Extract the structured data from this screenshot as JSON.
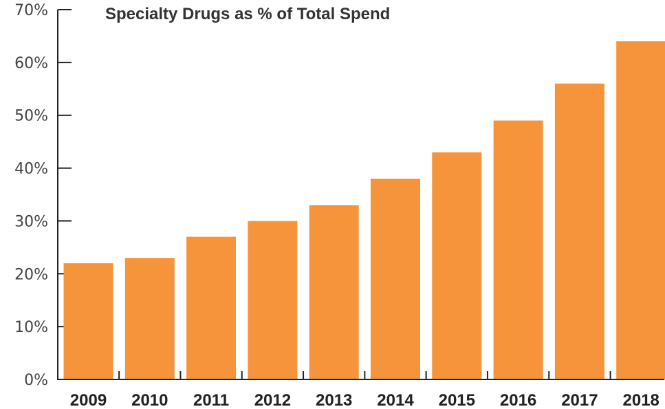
{
  "chart_data": {
    "type": "bar",
    "title": "Specialty Drugs as % of Total Spend",
    "xlabel": "",
    "ylabel": "",
    "categories": [
      "2009",
      "2010",
      "2011",
      "2012",
      "2013",
      "2014",
      "2015",
      "2016",
      "2017",
      "2018"
    ],
    "values": [
      22,
      23,
      27,
      30,
      33,
      38,
      43,
      49,
      56,
      64
    ],
    "ylim": [
      0,
      70
    ],
    "yticks": [
      "0%",
      "10%",
      "20%",
      "30%",
      "40%",
      "50%",
      "60%",
      "70%"
    ],
    "grid": false,
    "legend": "none",
    "bar_color": "#F5943A",
    "axis_color": "#222222"
  }
}
